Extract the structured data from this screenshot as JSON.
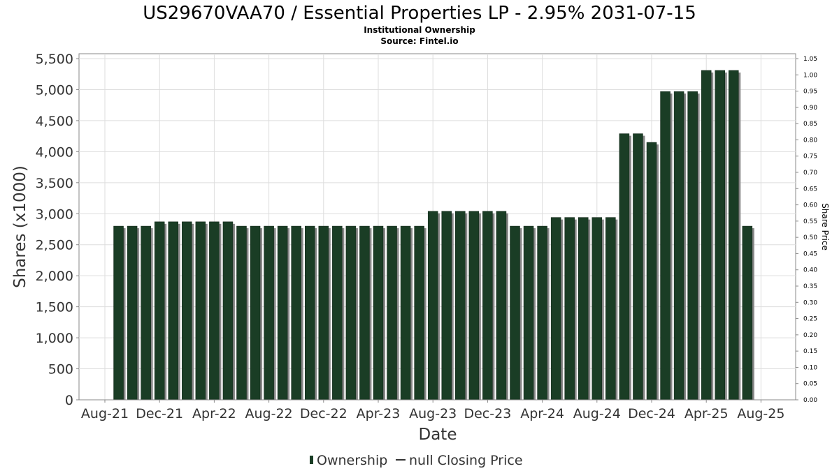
{
  "chart_data": {
    "type": "bar",
    "title": "US29670VAA70 / Essential Properties LP - 2.95% 2031-07-15",
    "subtitle": "Institutional Ownership",
    "source": "Source: Fintel.io",
    "xlabel": "Date",
    "ylabel": "Shares (x1000)",
    "ylabel_right": "Share Price",
    "ylim": [
      0,
      5500
    ],
    "ylim_right": [
      0,
      1.05
    ],
    "yticks": [
      "0",
      "500",
      "1,000",
      "1,500",
      "2,000",
      "2,500",
      "3,000",
      "3,500",
      "4,000",
      "4,500",
      "5,000",
      "5,500"
    ],
    "yticks_right": [
      "0.00",
      "0.05",
      "0.10",
      "0.15",
      "0.20",
      "0.25",
      "0.30",
      "0.35",
      "0.40",
      "0.45",
      "0.50",
      "0.55",
      "0.60",
      "0.65",
      "0.70",
      "0.75",
      "0.80",
      "0.85",
      "0.90",
      "0.95",
      "1.00",
      "1.05"
    ],
    "xticks": [
      "Aug-21",
      "Dec-21",
      "Apr-22",
      "Aug-22",
      "Dec-22",
      "Apr-23",
      "Aug-23",
      "Dec-23",
      "Apr-24",
      "Aug-24",
      "Dec-24",
      "Apr-25",
      "Aug-25"
    ],
    "series": [
      {
        "name": "Ownership",
        "color": "#1a3d25",
        "values": [
          2800,
          2800,
          2800,
          2870,
          2870,
          2870,
          2870,
          2870,
          2870,
          2800,
          2800,
          2800,
          2800,
          2800,
          2800,
          2800,
          2800,
          2800,
          2800,
          2800,
          2800,
          2800,
          2800,
          3040,
          3040,
          3040,
          3040,
          3040,
          3040,
          2800,
          2800,
          2800,
          2940,
          2940,
          2940,
          2940,
          2940,
          4290,
          4290,
          4150,
          4970,
          4970,
          4970,
          5310,
          5310,
          5310,
          2800
        ]
      }
    ],
    "legend": {
      "ownership_label": "Ownership",
      "price_label": "null Closing Price"
    },
    "grid": true,
    "legend_position": "bottom-center"
  }
}
